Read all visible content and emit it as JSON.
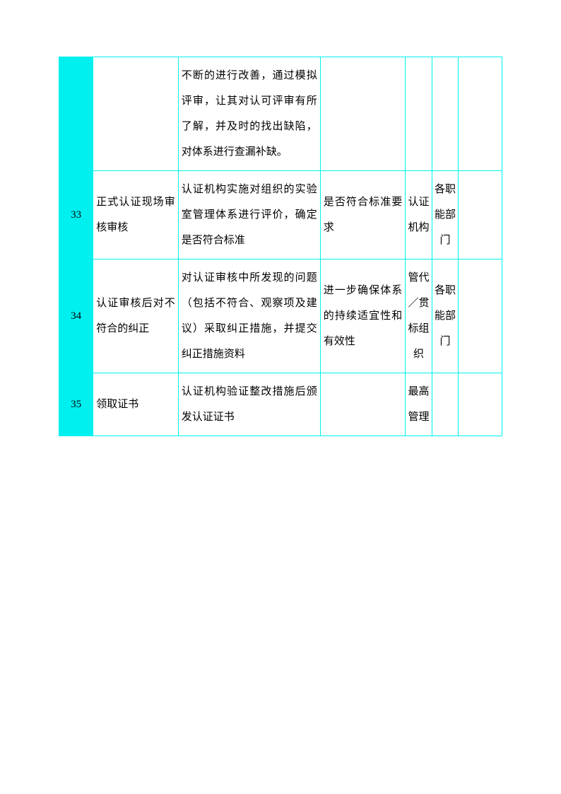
{
  "table": {
    "border_color": "#00f0f0",
    "header_bg": "#00f0f0",
    "rows": [
      {
        "num": "",
        "col2": "",
        "col3": "不断的进行改善，通过模拟评审，让其对认可评审有所了解，并及时的找出缺陷，对体系进行查漏补缺。",
        "col4": "",
        "col5": "",
        "col6": "",
        "col7": ""
      },
      {
        "num": "33",
        "col2": "正式认证现场审核审核",
        "col3": "认证机构实施对组织的实验室管理体系进行评价，确定是否符合标准",
        "col4": "是否符合标准要求",
        "col5": "认证机构",
        "col6": "各职能部门",
        "col7": ""
      },
      {
        "num": "34",
        "col2": "认证审核后对不符合的纠正",
        "col3": "对认证审核中所发现的问题（包括不符合、观察项及建议）采取纠正措施，并提交纠正措施资料",
        "col4": "进一步确保体系的持续适宜性和有效性",
        "col5": "管代／贯标组织",
        "col6": "各职能部门",
        "col7": ""
      },
      {
        "num": "35",
        "col2": "领取证书",
        "col3": "认证机构验证整改措施后颁发认证证书",
        "col4": "",
        "col5": "最高管理",
        "col6": "",
        "col7": ""
      }
    ]
  }
}
